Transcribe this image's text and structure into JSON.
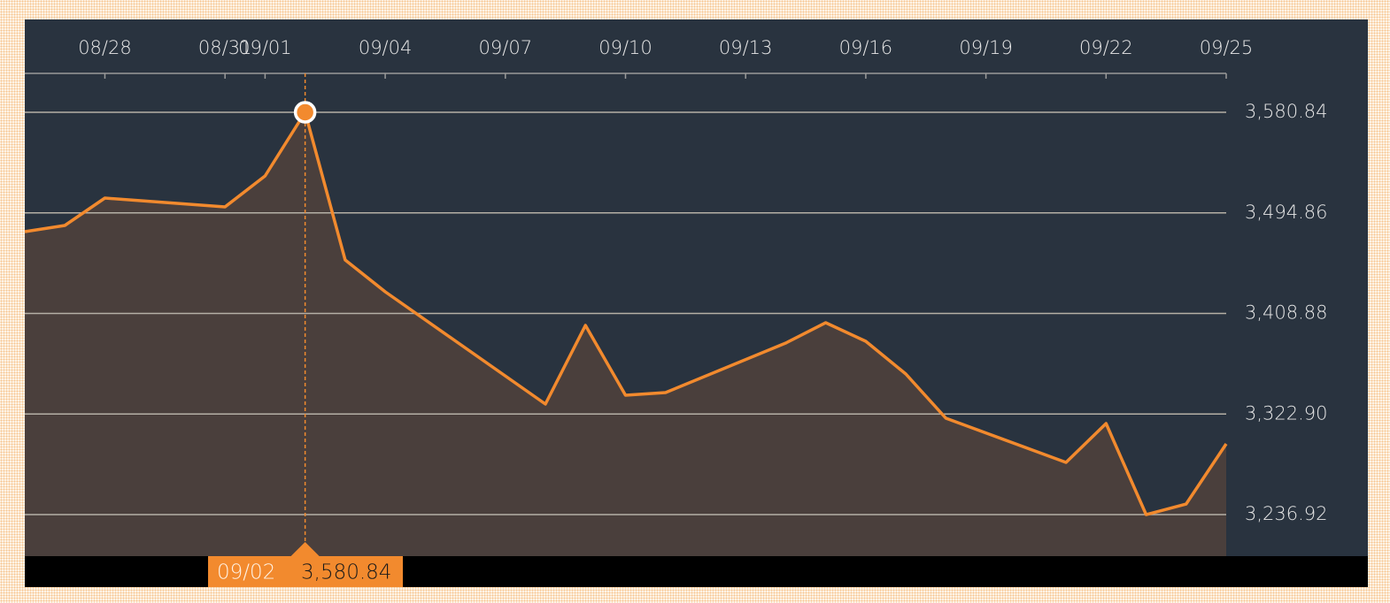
{
  "chart_data": {
    "type": "area",
    "x": [
      "08/26",
      "08/27",
      "08/28",
      "08/31",
      "09/01",
      "09/02",
      "09/03",
      "09/04",
      "09/08",
      "09/09",
      "09/10",
      "09/11",
      "09/14",
      "09/15",
      "09/16",
      "09/17",
      "09/18",
      "09/21",
      "09/22",
      "09/23",
      "09/24",
      "09/25"
    ],
    "series": [
      {
        "color": "#f28a2e",
        "values": [
          3478.8,
          3484.09,
          3507.52,
          3499.96,
          3526.42,
          3580.84,
          3454.61,
          3427.4,
          3331.41,
          3398.68,
          3338.97,
          3341.23,
          3383.56,
          3400.95,
          3385.07,
          3357.11,
          3319.31,
          3281.52,
          3314.78,
          3236.92,
          3245.99,
          3297.39
        ]
      }
    ],
    "xlim": [
      "08/26",
      "09/25"
    ],
    "xticks": [
      "08/28",
      "08/31",
      "09/01",
      "09/04",
      "09/07",
      "09/10",
      "09/13",
      "09/16",
      "09/19",
      "09/22",
      "09/25"
    ],
    "ylim": [
      3201.4,
      3614.1
    ],
    "yticks": [
      {
        "value": 3236.92,
        "label": "3,236.92"
      },
      {
        "value": 3322.9,
        "label": "3,322.90"
      },
      {
        "value": 3408.88,
        "label": "3,408.88"
      },
      {
        "value": 3494.86,
        "label": "3,494.86"
      },
      {
        "value": 3580.84,
        "label": "3,580.84"
      }
    ],
    "grid": true,
    "tooltip": {
      "x": "09/02",
      "value": {
        "value": 3580.84,
        "label": "3,580.84"
      }
    }
  }
}
